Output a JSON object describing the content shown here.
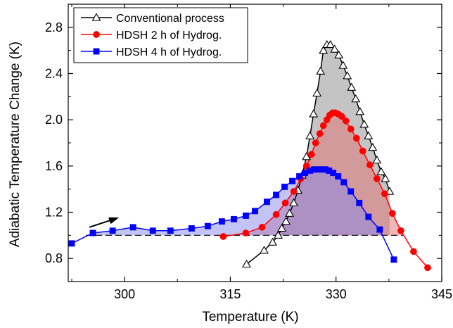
{
  "chart_data": {
    "type": "line",
    "xlabel": "Temperature (K)",
    "ylabel": "Adiabatic Temperature Change (K)",
    "xlim": [
      292,
      345
    ],
    "ylim": [
      0.6,
      3.0
    ],
    "xticks": [
      300,
      315,
      330,
      345
    ],
    "xtick_labels": [
      "300",
      "315",
      "330",
      "345"
    ],
    "yticks": [
      0.8,
      1.2,
      1.6,
      2.0,
      2.4,
      2.8
    ],
    "ytick_labels": [
      "0.8",
      "1.2",
      "1.6",
      "2.0",
      "2.4",
      "2.8"
    ],
    "grid": false,
    "legend_position": "top-left",
    "reference_line": {
      "y": 1.0,
      "style": "dashed"
    },
    "arrow": {
      "from": [
        295,
        1.07
      ],
      "to": [
        299,
        1.15
      ]
    },
    "series": [
      {
        "name": "Conventional process",
        "color": "#000000",
        "marker": "open-triangle",
        "fill_color": "#8a8a8a",
        "x": [
          317.3,
          319.8,
          321.0,
          321.8,
          322.3,
          322.9,
          323.4,
          324.0,
          324.6,
          325.2,
          325.8,
          326.3,
          326.8,
          327.3,
          327.8,
          328.2,
          328.7,
          329.2,
          329.8,
          330.4,
          331.0,
          331.6,
          332.2,
          332.8,
          333.4,
          334.0,
          334.6,
          335.2,
          335.8,
          336.4,
          337.0,
          337.6
        ],
        "y": [
          0.75,
          0.87,
          0.94,
          1.0,
          1.06,
          1.12,
          1.19,
          1.28,
          1.39,
          1.52,
          1.68,
          1.86,
          2.05,
          2.23,
          2.42,
          2.6,
          2.65,
          2.65,
          2.61,
          2.56,
          2.47,
          2.38,
          2.28,
          2.18,
          2.07,
          1.96,
          1.86,
          1.76,
          1.65,
          1.55,
          1.49,
          1.38
        ]
      },
      {
        "name": "HDSH 2 h of Hydrog.",
        "color": "#ff0000",
        "marker": "filled-circle",
        "fill_color": "#e07070",
        "x": [
          314.0,
          317.2,
          319.5,
          321.5,
          322.8,
          324.0,
          325.0,
          325.8,
          326.5,
          327.1,
          327.7,
          328.2,
          328.7,
          329.1,
          329.5,
          329.9,
          330.3,
          330.8,
          331.4,
          332.1,
          332.9,
          333.8,
          334.8,
          335.8,
          336.9,
          338.0,
          339.2,
          341.0,
          343.0
        ],
        "y": [
          0.99,
          1.02,
          1.07,
          1.18,
          1.28,
          1.38,
          1.49,
          1.6,
          1.7,
          1.8,
          1.88,
          1.95,
          2.0,
          2.04,
          2.06,
          2.06,
          2.05,
          2.03,
          1.99,
          1.92,
          1.84,
          1.73,
          1.61,
          1.49,
          1.36,
          1.19,
          1.04,
          0.86,
          0.72
        ]
      },
      {
        "name": "HDSH 4 h of Hydrog.",
        "color": "#0000ff",
        "marker": "filled-square",
        "fill_color": "#8888ee",
        "x": [
          292.5,
          295.5,
          298.3,
          301.2,
          304.0,
          306.5,
          309.5,
          311.8,
          313.8,
          315.5,
          317.2,
          318.5,
          320.2,
          321.5,
          322.7,
          323.8,
          324.8,
          325.6,
          326.3,
          326.9,
          327.5,
          328.0,
          328.5,
          329.0,
          329.6,
          330.3,
          331.1,
          332.1,
          333.3,
          334.6,
          336.2,
          338.2
        ],
        "y": [
          0.93,
          1.02,
          1.04,
          1.07,
          1.04,
          1.04,
          1.06,
          1.08,
          1.12,
          1.14,
          1.17,
          1.21,
          1.29,
          1.35,
          1.42,
          1.47,
          1.51,
          1.54,
          1.56,
          1.57,
          1.57,
          1.57,
          1.57,
          1.56,
          1.54,
          1.51,
          1.46,
          1.38,
          1.28,
          1.16,
          1.05,
          0.79
        ]
      }
    ]
  }
}
